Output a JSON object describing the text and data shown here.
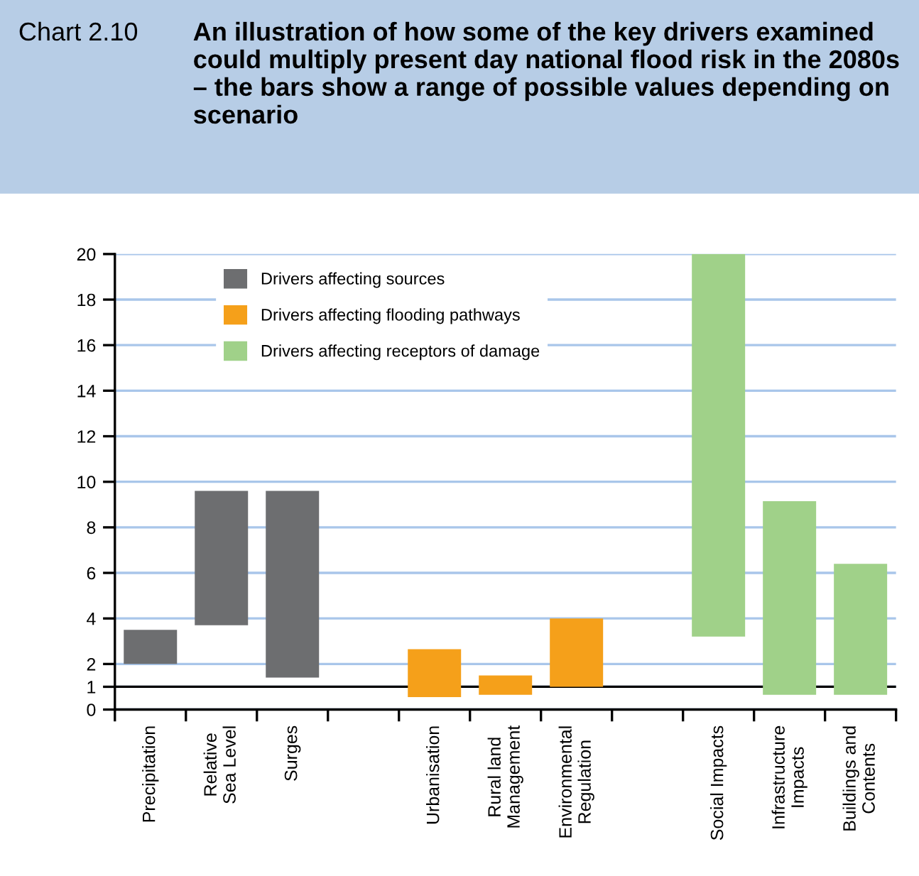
{
  "chart_data": {
    "type": "bar",
    "title": "An illustration of how some of the key drivers examined could multiply present day national flood risk in the 2080s – the bars show a range of possible values depending on scenario",
    "annotations": [
      "Chart 2.10"
    ],
    "categories": [
      "Precipitation",
      "Relative\nSea Level",
      "Surges",
      null,
      "Urbanisation",
      "Rural land\nManagement",
      "Environmental\nRegulation",
      null,
      "Social Impacts",
      "Infrastructure\nImpacts",
      "Buildings and\nContents"
    ],
    "series": [
      {
        "name": "Drivers affecting sources",
        "color": "#6d6e70",
        "base": [
          2,
          3.7,
          1.4,
          null,
          null,
          null,
          null,
          null,
          null,
          null,
          null
        ],
        "values": [
          1.5,
          5.9,
          8.2,
          null,
          null,
          null,
          null,
          null,
          null,
          null,
          null
        ]
      },
      {
        "name": "Drivers affecting flooding pathways",
        "color": "#f5a01a",
        "base": [
          null,
          null,
          null,
          null,
          0.55,
          0.65,
          1,
          null,
          null,
          null,
          null
        ],
        "values": [
          null,
          null,
          null,
          null,
          2.1,
          0.85,
          3,
          null,
          null,
          null,
          null
        ]
      },
      {
        "name": "Drivers affecting receptors of damage",
        "color": "#a0d189",
        "base": [
          null,
          null,
          null,
          null,
          null,
          null,
          null,
          null,
          3.2,
          0.65,
          0.65
        ],
        "values": [
          null,
          null,
          null,
          null,
          null,
          null,
          null,
          null,
          16.8,
          8.5,
          5.75
        ]
      }
    ],
    "ylim": [
      0,
      20
    ],
    "yticks": [
      0,
      1,
      2,
      4,
      6,
      8,
      10,
      12,
      14,
      16,
      18,
      20
    ],
    "ref_lines": [
      {
        "axis": "y",
        "value": 1,
        "color": "#000000"
      }
    ],
    "grid": "y",
    "legend": "top left"
  }
}
